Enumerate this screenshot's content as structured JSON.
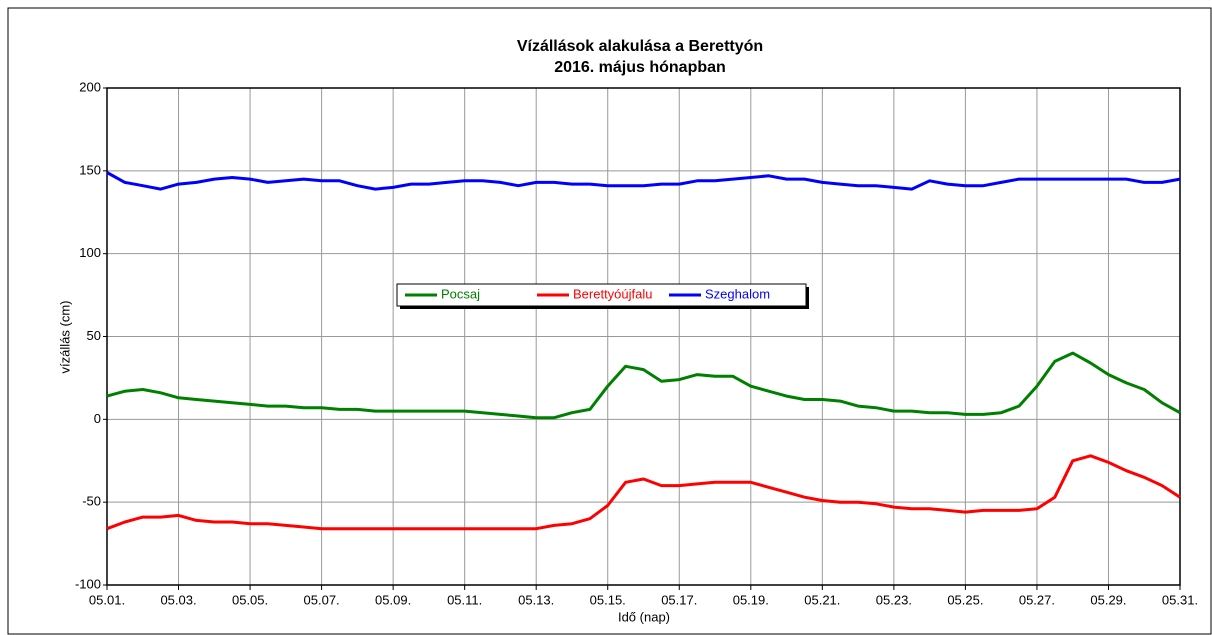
{
  "chart_data": {
    "type": "line",
    "title": "Vízállások alakulása a Berettyón",
    "subtitle": "2016. május hónapban",
    "x_label": "Idő (nap)",
    "y_label": "vízállás (cm)",
    "x": [
      1,
      1.5,
      2,
      2.5,
      3,
      3.5,
      4,
      4.5,
      5,
      5.5,
      6,
      6.5,
      7,
      7.5,
      8,
      8.5,
      9,
      9.5,
      10,
      10.5,
      11,
      11.5,
      12,
      12.5,
      13,
      13.5,
      14,
      14.5,
      15,
      15.5,
      16,
      16.5,
      17,
      17.5,
      18,
      18.5,
      19,
      19.5,
      20,
      20.5,
      21,
      21.5,
      22,
      22.5,
      23,
      23.5,
      24,
      24.5,
      25,
      25.5,
      26,
      26.5,
      27,
      27.5,
      28,
      28.5,
      29,
      29.5,
      30,
      30.5,
      31
    ],
    "series": [
      {
        "name": "Pocsaj",
        "color": "#008000",
        "values": [
          14,
          17,
          18,
          16,
          13,
          12,
          11,
          10,
          9,
          8,
          8,
          7,
          7,
          6,
          6,
          5,
          5,
          5,
          5,
          5,
          5,
          4,
          3,
          2,
          1,
          1,
          4,
          6,
          20,
          32,
          30,
          23,
          24,
          27,
          26,
          26,
          20,
          17,
          14,
          12,
          12,
          11,
          8,
          7,
          5,
          5,
          4,
          4,
          3,
          3,
          4,
          8,
          20,
          35,
          40,
          34,
          27,
          22,
          18,
          10,
          4
        ]
      },
      {
        "name": "Berettyóújfalu",
        "color": "#ff0000",
        "values": [
          -66,
          -62,
          -59,
          -59,
          -58,
          -61,
          -62,
          -62,
          -63,
          -63,
          -64,
          -65,
          -66,
          -66,
          -66,
          -66,
          -66,
          -66,
          -66,
          -66,
          -66,
          -66,
          -66,
          -66,
          -66,
          -64,
          -63,
          -60,
          -52,
          -38,
          -36,
          -40,
          -40,
          -39,
          -38,
          -38,
          -38,
          -41,
          -44,
          -47,
          -49,
          -50,
          -50,
          -51,
          -53,
          -54,
          -54,
          -55,
          -56,
          -55,
          -55,
          -55,
          -54,
          -47,
          -25,
          -22,
          -26,
          -31,
          -35,
          -40,
          -47
        ]
      },
      {
        "name": "Szeghalom",
        "color": "#0000ff",
        "values": [
          149,
          143,
          141,
          139,
          142,
          143,
          145,
          146,
          145,
          143,
          144,
          145,
          144,
          144,
          141,
          139,
          140,
          142,
          142,
          143,
          144,
          144,
          143,
          141,
          143,
          143,
          142,
          142,
          141,
          141,
          141,
          142,
          142,
          144,
          144,
          145,
          146,
          147,
          145,
          145,
          143,
          142,
          141,
          141,
          140,
          139,
          144,
          142,
          141,
          141,
          143,
          145,
          145,
          145,
          145,
          145,
          145,
          145,
          143,
          143,
          145
        ]
      }
    ],
    "xlim": [
      1,
      31
    ],
    "xticks": [
      {
        "value": 1,
        "label": "05.01."
      },
      {
        "value": 3,
        "label": "05.03."
      },
      {
        "value": 5,
        "label": "05.05."
      },
      {
        "value": 7,
        "label": "05.07."
      },
      {
        "value": 9,
        "label": "05.09."
      },
      {
        "value": 11,
        "label": "05.11."
      },
      {
        "value": 13,
        "label": "05.13."
      },
      {
        "value": 15,
        "label": "05.15."
      },
      {
        "value": 17,
        "label": "05.17."
      },
      {
        "value": 19,
        "label": "05.19."
      },
      {
        "value": 21,
        "label": "05.21."
      },
      {
        "value": 23,
        "label": "05.23."
      },
      {
        "value": 25,
        "label": "05.25."
      },
      {
        "value": 27,
        "label": "05.27."
      },
      {
        "value": 29,
        "label": "05.29."
      },
      {
        "value": 31,
        "label": "05.31."
      }
    ],
    "ylim": [
      -100,
      200
    ],
    "yticks": [
      -100,
      -50,
      0,
      50,
      100,
      150,
      200
    ],
    "grid": true,
    "legend": "center"
  }
}
